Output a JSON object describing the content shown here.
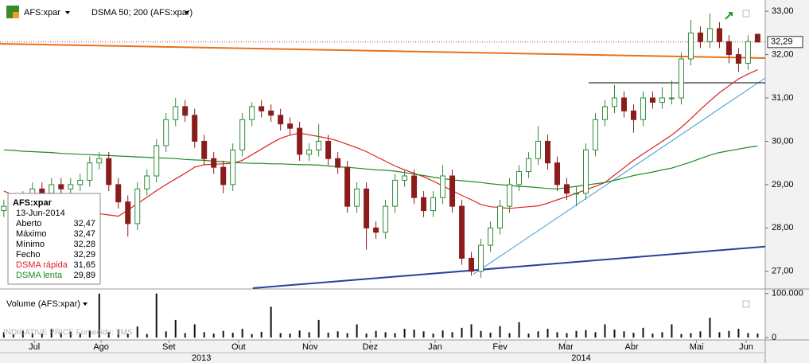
{
  "chart_data": {
    "type": "candlestick",
    "ticker": "AFS:xpar",
    "indicator": "DSMA 50; 200 (AFS:xpar)",
    "open": [
      28.4,
      28.5,
      28.6,
      28.7,
      28.9,
      28.8,
      29.0,
      28.9,
      29.0,
      29.1,
      29.5,
      29.6,
      29.0,
      28.6,
      28.1,
      28.9,
      29.2,
      29.9,
      30.5,
      30.8,
      30.6,
      30.0,
      29.6,
      29.4,
      29.0,
      29.8,
      30.5,
      30.8,
      30.7,
      30.6,
      30.4,
      30.3,
      29.7,
      29.8,
      30.0,
      29.6,
      29.4,
      28.5,
      28.9,
      28.0,
      27.9,
      28.5,
      29.1,
      29.2,
      28.7,
      28.4,
      28.7,
      29.2,
      28.5,
      27.3,
      27.0,
      27.6,
      28.0,
      28.5,
      29.0,
      29.3,
      29.6,
      30.0,
      29.5,
      29.0,
      28.8,
      28.8,
      29.8,
      30.5,
      30.8,
      31.0,
      30.7,
      30.5,
      31.0,
      30.9,
      31.0,
      31.0,
      31.9,
      32.5,
      32.3,
      32.6,
      32.3,
      32.0,
      31.8,
      32.47
    ],
    "high": [
      28.65,
      28.75,
      28.85,
      29.05,
      29.05,
      29.15,
      29.15,
      29.15,
      29.25,
      29.65,
      29.75,
      29.75,
      29.15,
      28.75,
      29.05,
      29.35,
      30.05,
      30.65,
      31.0,
      30.95,
      30.75,
      30.15,
      29.75,
      29.55,
      29.95,
      30.65,
      30.9,
      30.95,
      30.85,
      30.75,
      30.55,
      30.45,
      29.95,
      30.4,
      30.15,
      29.75,
      29.55,
      29.05,
      29.05,
      28.15,
      28.65,
      29.25,
      29.35,
      29.35,
      28.85,
      28.85,
      29.45,
      29.35,
      28.65,
      27.45,
      27.75,
      28.15,
      28.65,
      29.15,
      29.45,
      29.75,
      30.35,
      30.15,
      29.65,
      29.15,
      28.95,
      29.95,
      30.65,
      30.95,
      31.3,
      31.15,
      30.85,
      31.15,
      31.15,
      31.25,
      31.4,
      32.05,
      32.8,
      32.65,
      32.95,
      32.75,
      32.45,
      32.15,
      32.45,
      32.47
    ],
    "low": [
      28.25,
      28.35,
      28.45,
      28.55,
      28.65,
      28.65,
      28.75,
      28.75,
      28.85,
      28.95,
      29.35,
      28.85,
      28.45,
      27.8,
      27.95,
      28.75,
      29.05,
      29.75,
      30.35,
      30.45,
      29.85,
      29.45,
      29.25,
      28.8,
      28.85,
      29.65,
      30.35,
      30.55,
      30.45,
      30.25,
      30.15,
      29.55,
      29.55,
      29.65,
      29.45,
      29.25,
      28.35,
      28.35,
      27.5,
      27.75,
      27.75,
      28.35,
      28.95,
      28.55,
      28.25,
      28.25,
      28.55,
      28.35,
      27.15,
      26.9,
      26.85,
      27.45,
      27.85,
      28.35,
      28.85,
      29.15,
      29.45,
      29.35,
      28.85,
      28.65,
      28.5,
      28.65,
      29.65,
      30.35,
      30.65,
      30.55,
      30.2,
      30.35,
      30.75,
      30.75,
      30.85,
      30.85,
      31.75,
      32.15,
      32.15,
      32.15,
      31.8,
      31.6,
      31.65,
      32.28
    ],
    "close": [
      28.5,
      28.6,
      28.7,
      28.9,
      28.8,
      29.0,
      28.9,
      29.0,
      29.1,
      29.5,
      29.6,
      29.0,
      28.6,
      28.1,
      28.9,
      29.2,
      29.9,
      30.5,
      30.8,
      30.6,
      30.0,
      29.6,
      29.4,
      29.0,
      29.8,
      30.5,
      30.8,
      30.7,
      30.6,
      30.4,
      30.3,
      29.7,
      29.8,
      30.0,
      29.6,
      29.4,
      28.5,
      28.9,
      28.0,
      27.9,
      28.5,
      29.1,
      29.2,
      28.7,
      28.4,
      28.7,
      29.2,
      28.5,
      27.3,
      27.0,
      27.6,
      28.0,
      28.5,
      29.0,
      29.3,
      29.6,
      30.0,
      29.5,
      29.0,
      28.8,
      28.8,
      29.8,
      30.5,
      30.8,
      31.0,
      30.7,
      30.5,
      31.0,
      30.9,
      31.0,
      31.0,
      31.9,
      32.5,
      32.3,
      32.6,
      32.3,
      32.0,
      31.8,
      32.3,
      32.29
    ],
    "up_color": "#2e8b3a",
    "down_color": "#8b1c1c",
    "xlim": [
      -0.4,
      79.8
    ],
    "ylim": [
      26.61,
      33.26
    ],
    "yticks": [
      {
        "value": 27,
        "label": "27,00"
      },
      {
        "value": 28,
        "label": "28,00"
      },
      {
        "value": 29,
        "label": "29,00"
      },
      {
        "value": 30,
        "label": "30,00"
      },
      {
        "value": 31,
        "label": "31,00"
      },
      {
        "value": 32,
        "label": "32,00"
      },
      {
        "value": 33,
        "label": "33,00"
      }
    ],
    "xticks": [
      {
        "value": 3.2,
        "label": "Jul"
      },
      {
        "value": 10.2,
        "label": "Ago"
      },
      {
        "value": 17.3,
        "label": "Set"
      },
      {
        "value": 24.6,
        "label": "Out"
      },
      {
        "value": 32.1,
        "label": "Nov"
      },
      {
        "value": 38.4,
        "label": "Dez"
      },
      {
        "value": 45.2,
        "label": "Jan"
      },
      {
        "value": 52,
        "label": "Fev"
      },
      {
        "value": 58.9,
        "label": "Mar"
      },
      {
        "value": 65.8,
        "label": "Abr"
      },
      {
        "value": 72.6,
        "label": "Mai"
      },
      {
        "value": 77.8,
        "label": "Jun"
      }
    ],
    "years": [
      {
        "value": 20.7,
        "label": "2013"
      },
      {
        "value": 60.5,
        "label": "2014"
      }
    ],
    "series": [
      {
        "name": "DSMA rápida",
        "color": "#e02020",
        "values": [
          28.85,
          28.76,
          28.66,
          28.57,
          28.49,
          28.47,
          28.45,
          28.42,
          28.4,
          28.37,
          28.33,
          28.3,
          28.27,
          28.41,
          28.56,
          28.71,
          28.86,
          29.0,
          29.13,
          29.26,
          29.4,
          29.46,
          29.47,
          29.48,
          29.49,
          29.56,
          29.69,
          29.82,
          29.95,
          30.07,
          30.14,
          30.19,
          30.15,
          30.11,
          30.07,
          30.01,
          29.93,
          29.85,
          29.76,
          29.65,
          29.54,
          29.43,
          29.34,
          29.26,
          29.18,
          29.08,
          28.97,
          28.86,
          28.75,
          28.65,
          28.54,
          28.49,
          28.47,
          28.45,
          28.47,
          28.49,
          28.51,
          28.57,
          28.65,
          28.72,
          28.8,
          28.88,
          28.96,
          29.05,
          29.22,
          29.39,
          29.56,
          29.71,
          29.85,
          30.0,
          30.14,
          30.32,
          30.52,
          30.73,
          30.93,
          31.12,
          31.28,
          31.44,
          31.55,
          31.65
        ]
      },
      {
        "name": "DSMA lenta",
        "color": "#1e8a1e",
        "values": [
          29.8,
          29.79,
          29.77,
          29.76,
          29.75,
          29.74,
          29.72,
          29.71,
          29.7,
          29.69,
          29.68,
          29.67,
          29.66,
          29.65,
          29.64,
          29.63,
          29.62,
          29.61,
          29.6,
          29.58,
          29.57,
          29.56,
          29.54,
          29.53,
          29.51,
          29.5,
          29.49,
          29.49,
          29.48,
          29.48,
          29.47,
          29.46,
          29.46,
          29.45,
          29.43,
          29.41,
          29.4,
          29.38,
          29.36,
          29.34,
          29.33,
          29.31,
          29.28,
          29.24,
          29.21,
          29.17,
          29.14,
          29.11,
          29.09,
          29.07,
          29.05,
          29.02,
          29.0,
          28.98,
          28.96,
          28.95,
          28.93,
          28.91,
          28.9,
          28.93,
          28.96,
          28.99,
          29.02,
          29.05,
          29.1,
          29.15,
          29.21,
          29.25,
          29.29,
          29.34,
          29.38,
          29.45,
          29.52,
          29.6,
          29.68,
          29.74,
          29.78,
          29.82,
          29.86,
          29.89
        ]
      }
    ],
    "trendlines": [
      {
        "color": "#e8721c",
        "x": [
          -0.4,
          79.8
        ],
        "y": [
          32.25,
          31.92
        ]
      },
      {
        "color": "#2a3fa0",
        "x": [
          26.1,
          79.8
        ],
        "y": [
          26.61,
          27.57
        ]
      },
      {
        "color": "#3a9ad9",
        "x": [
          49.2,
          79.8
        ],
        "y": [
          26.93,
          31.46
        ]
      },
      {
        "color": "#000000",
        "x": [
          61.3,
          79.8
        ],
        "y": [
          31.35,
          31.35
        ]
      }
    ],
    "last_price": {
      "value": 32.29,
      "label": "32,29"
    },
    "info_panel": {
      "date": "13-Jun-2014",
      "rows": [
        {
          "name": "Aberto",
          "value": 32.47,
          "label": "32,47"
        },
        {
          "name": "Máximo",
          "value": 32.47,
          "label": "32,47"
        },
        {
          "name": "Mínimo",
          "value": 32.28,
          "label": "32,28"
        },
        {
          "name": "Fecho",
          "value": 32.29,
          "label": "32,29"
        }
      ],
      "series_last": [
        {
          "value": 31.65,
          "label": "31,65"
        },
        {
          "value": 29.89,
          "label": "29,89"
        }
      ]
    },
    "volume": {
      "title": "Volume (AFS:xpar)",
      "color": "#111111",
      "values": [
        12000,
        8000,
        15000,
        10000,
        9000,
        20000,
        11000,
        14000,
        9000,
        16000,
        100000,
        12000,
        18000,
        9000,
        25000,
        8000,
        100000,
        14000,
        40000,
        10000,
        30000,
        12000,
        9000,
        15000,
        11000,
        20000,
        8000,
        13000,
        70000,
        10000,
        9000,
        16000,
        12000,
        40000,
        11000,
        14000,
        10000,
        30000,
        9000,
        15000,
        12000,
        10000,
        20000,
        18000,
        14000,
        9000,
        16000,
        12000,
        22000,
        30000,
        15000,
        11000,
        26000,
        10000,
        35000,
        9000,
        14000,
        20000,
        12000,
        10000,
        15000,
        17000,
        12000,
        30000,
        18000,
        14000,
        11000,
        22000,
        9000,
        12000,
        30000,
        8000,
        10000,
        14000,
        45000,
        12000,
        15000,
        20000,
        10000,
        9000
      ],
      "ylim": [
        0,
        105000
      ],
      "yticks": [
        {
          "value": 100000,
          "label": "100.000"
        },
        0
      ]
    },
    "watermark": "INDICATIVE PRICE  Fornecido: TMS"
  }
}
